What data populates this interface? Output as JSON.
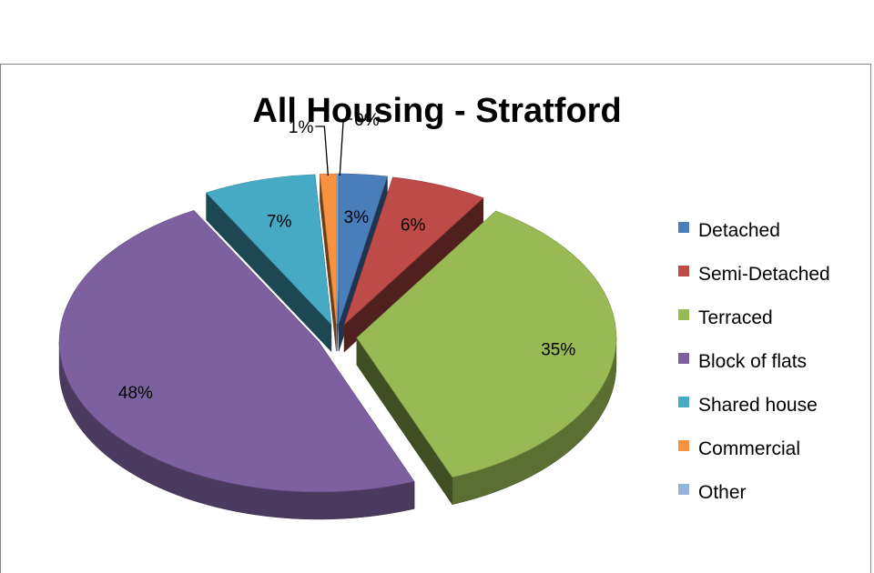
{
  "chart_data": {
    "type": "pie",
    "title": "All Housing - Stratford",
    "legend_position": "right",
    "three_d": true,
    "exploded": true,
    "slices": [
      {
        "label": "Detached",
        "value": 3,
        "display": "3%",
        "color": "#4a7ebb"
      },
      {
        "label": "Semi-Detached",
        "value": 6,
        "display": "6%",
        "color": "#be4b48"
      },
      {
        "label": "Terraced",
        "value": 35,
        "display": "35%",
        "color": "#98b954"
      },
      {
        "label": "Block of flats",
        "value": 48,
        "display": "48%",
        "color": "#7d60a0"
      },
      {
        "label": "Shared house",
        "value": 7,
        "display": "7%",
        "color": "#46aac5"
      },
      {
        "label": "Commercial",
        "value": 1,
        "display": "1%",
        "color": "#f69240"
      },
      {
        "label": "Other",
        "value": 0,
        "display": "0%",
        "color": "#95b3d7"
      }
    ]
  }
}
